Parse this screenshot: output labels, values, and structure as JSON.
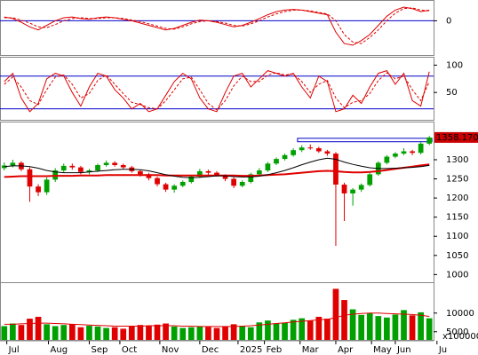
{
  "chart_data": [
    {
      "type": "line",
      "ylim": [
        -45,
        25
      ],
      "yticks": [
        0
      ],
      "hlines": [
        0
      ],
      "hline_color": "#0000cc",
      "series": [
        {
          "color": "#e00000",
          "dash": false,
          "values": [
            5,
            3,
            -2,
            -8,
            -12,
            -6,
            0,
            4,
            5,
            3,
            2,
            4,
            5,
            4,
            2,
            0,
            -3,
            -6,
            -9,
            -12,
            -10,
            -6,
            -2,
            1,
            0,
            -2,
            -5,
            -8,
            -6,
            -2,
            3,
            8,
            12,
            14,
            15,
            14,
            12,
            10,
            8,
            -15,
            -30,
            -32,
            -26,
            -18,
            -6,
            6,
            14,
            18,
            16,
            12,
            14
          ]
        },
        {
          "color": "#e00000",
          "dash": true,
          "values": [
            4,
            4,
            1,
            -3,
            -8,
            -9,
            -5,
            0,
            3,
            4,
            3,
            3,
            4,
            4,
            3,
            1,
            -1,
            -4,
            -7,
            -10,
            -11,
            -8,
            -4,
            -1,
            0,
            -1,
            -3,
            -6,
            -7,
            -4,
            0,
            5,
            9,
            12,
            14,
            14,
            13,
            11,
            9,
            0,
            -18,
            -28,
            -30,
            -22,
            -12,
            0,
            10,
            16,
            17,
            14,
            13
          ]
        }
      ]
    },
    {
      "type": "line",
      "ylim": [
        0,
        112
      ],
      "yticks": [
        50,
        100
      ],
      "hlines": [
        20,
        80
      ],
      "hline_color": "#0000cc",
      "series": [
        {
          "color": "#e00000",
          "dash": false,
          "values": [
            70,
            85,
            40,
            15,
            30,
            75,
            85,
            80,
            50,
            25,
            60,
            85,
            80,
            55,
            40,
            20,
            30,
            15,
            20,
            45,
            70,
            85,
            75,
            40,
            20,
            15,
            50,
            80,
            85,
            60,
            75,
            90,
            85,
            80,
            85,
            60,
            40,
            80,
            70,
            15,
            20,
            45,
            30,
            60,
            85,
            90,
            65,
            85,
            35,
            25,
            88
          ]
        },
        {
          "color": "#e00000",
          "dash": true,
          "values": [
            65,
            78,
            60,
            35,
            28,
            55,
            78,
            82,
            65,
            40,
            48,
            72,
            82,
            65,
            48,
            32,
            28,
            22,
            20,
            35,
            55,
            75,
            78,
            55,
            30,
            18,
            35,
            62,
            80,
            70,
            70,
            82,
            86,
            82,
            84,
            70,
            50,
            65,
            72,
            40,
            22,
            32,
            35,
            48,
            72,
            86,
            75,
            80,
            55,
            35,
            70
          ]
        }
      ]
    },
    {
      "type": "candlestick",
      "ylim": [
        980,
        1395
      ],
      "yticks": [
        1000,
        1050,
        1100,
        1150,
        1200,
        1250,
        1300
      ],
      "up_color": "#00a000",
      "down_color": "#e00000",
      "open": [
        1278,
        1285,
        1292,
        1275,
        1230,
        1215,
        1248,
        1272,
        1284,
        1280,
        1268,
        1272,
        1286,
        1292,
        1286,
        1280,
        1270,
        1262,
        1252,
        1236,
        1222,
        1232,
        1242,
        1256,
        1270,
        1266,
        1260,
        1250,
        1232,
        1242,
        1262,
        1272,
        1290,
        1302,
        1312,
        1325,
        1332,
        1330,
        1322,
        1316,
        1235,
        1212,
        1222,
        1234,
        1262,
        1292,
        1308,
        1316,
        1322,
        1318,
        1342
      ],
      "high": [
        1293,
        1300,
        1296,
        1280,
        1236,
        1254,
        1278,
        1290,
        1290,
        1284,
        1276,
        1290,
        1298,
        1296,
        1290,
        1284,
        1274,
        1266,
        1256,
        1240,
        1236,
        1246,
        1260,
        1276,
        1274,
        1270,
        1262,
        1254,
        1246,
        1266,
        1278,
        1294,
        1306,
        1316,
        1330,
        1338,
        1340,
        1334,
        1326,
        1320,
        1240,
        1226,
        1238,
        1266,
        1296,
        1312,
        1320,
        1330,
        1326,
        1346,
        1362
      ],
      "low": [
        1272,
        1280,
        1270,
        1190,
        1205,
        1208,
        1242,
        1266,
        1274,
        1262,
        1262,
        1268,
        1282,
        1282,
        1276,
        1266,
        1256,
        1246,
        1230,
        1216,
        1214,
        1228,
        1238,
        1252,
        1260,
        1256,
        1244,
        1226,
        1228,
        1238,
        1258,
        1268,
        1286,
        1298,
        1308,
        1320,
        1326,
        1318,
        1310,
        1075,
        1140,
        1180,
        1216,
        1230,
        1258,
        1288,
        1304,
        1312,
        1312,
        1314,
        1338
      ],
      "close": [
        1285,
        1292,
        1275,
        1230,
        1215,
        1248,
        1272,
        1284,
        1280,
        1268,
        1272,
        1286,
        1292,
        1286,
        1280,
        1270,
        1262,
        1252,
        1236,
        1222,
        1232,
        1242,
        1256,
        1270,
        1266,
        1260,
        1250,
        1232,
        1242,
        1262,
        1272,
        1290,
        1302,
        1312,
        1325,
        1332,
        1330,
        1322,
        1316,
        1235,
        1212,
        1222,
        1234,
        1262,
        1292,
        1308,
        1316,
        1322,
        1318,
        1342,
        1358
      ],
      "series": [
        {
          "color": "#e00000",
          "width": 2,
          "values": [
            1255,
            1256,
            1257,
            1257,
            1257,
            1257,
            1258,
            1258,
            1258,
            1259,
            1259,
            1259,
            1260,
            1260,
            1260,
            1260,
            1260,
            1260,
            1260,
            1259,
            1259,
            1259,
            1259,
            1259,
            1259,
            1259,
            1259,
            1259,
            1258,
            1258,
            1259,
            1260,
            1261,
            1262,
            1264,
            1266,
            1268,
            1270,
            1271,
            1270,
            1268,
            1267,
            1267,
            1268,
            1270,
            1273,
            1276,
            1279,
            1282,
            1285,
            1288
          ]
        },
        {
          "color": "#000000",
          "width": 1,
          "values": [
            1282,
            1284,
            1284,
            1282,
            1278,
            1272,
            1268,
            1266,
            1266,
            1266,
            1268,
            1270,
            1272,
            1274,
            1275,
            1275,
            1274,
            1271,
            1266,
            1261,
            1257,
            1254,
            1253,
            1254,
            1256,
            1258,
            1258,
            1256,
            1255,
            1255,
            1257,
            1261,
            1266,
            1272,
            1279,
            1287,
            1294,
            1300,
            1304,
            1301,
            1294,
            1288,
            1283,
            1279,
            1277,
            1277,
            1278,
            1279,
            1280,
            1282,
            1285
          ]
        }
      ],
      "last_price": {
        "value": 1358.17,
        "label": "1358.170"
      },
      "zone": {
        "start": 34.5,
        "end": 50.3,
        "low": 1347,
        "high": 1356,
        "color": "#0000cc"
      }
    },
    {
      "type": "bar",
      "ylim": [
        2800,
        17800
      ],
      "yticks": [
        5000,
        10000
      ],
      "unit": "x100000",
      "values": [
        6500,
        7200,
        6800,
        8500,
        9000,
        7000,
        6500,
        6800,
        7000,
        6200,
        6600,
        6400,
        6000,
        6200,
        5800,
        6500,
        6800,
        6600,
        6900,
        7200,
        6400,
        6000,
        6200,
        6500,
        6300,
        6000,
        6400,
        7000,
        6600,
        6200,
        7500,
        8000,
        7200,
        7400,
        8200,
        8600,
        8000,
        9000,
        8500,
        16500,
        13500,
        11000,
        9500,
        10000,
        9200,
        8800,
        9600,
        10800,
        9400,
        10200,
        8600
      ],
      "series": [
        {
          "color": "#e00000",
          "width": 1,
          "values": [
            7000,
            7000,
            7100,
            7200,
            7300,
            7300,
            7200,
            7100,
            7000,
            6900,
            6800,
            6700,
            6600,
            6500,
            6500,
            6500,
            6500,
            6600,
            6600,
            6600,
            6600,
            6500,
            6500,
            6400,
            6400,
            6400,
            6400,
            6400,
            6500,
            6600,
            6800,
            7000,
            7200,
            7400,
            7600,
            7800,
            8000,
            8200,
            8300,
            8800,
            9400,
            9700,
            9900,
            10000,
            10000,
            9900,
            9800,
            9700,
            9600,
            9400,
            9100
          ]
        }
      ],
      "xlim": [
        -0.5,
        50.5
      ],
      "xticks": [
        {
          "value": 0.3,
          "label": "Jul"
        },
        {
          "value": 5.2,
          "label": "Aug"
        },
        {
          "value": 10,
          "label": "Sep"
        },
        {
          "value": 13.6,
          "label": "Oct"
        },
        {
          "value": 18.3,
          "label": "Nov"
        },
        {
          "value": 23,
          "label": "Dec"
        },
        {
          "value": 27.5,
          "label": "2025"
        },
        {
          "value": 30.6,
          "label": "Feb"
        },
        {
          "value": 34.8,
          "label": "Mar"
        },
        {
          "value": 39,
          "label": "Apr"
        },
        {
          "value": 43.2,
          "label": "May"
        },
        {
          "value": 46,
          "label": "Jun"
        },
        {
          "value": 50.9,
          "label": "Ju"
        }
      ]
    }
  ]
}
